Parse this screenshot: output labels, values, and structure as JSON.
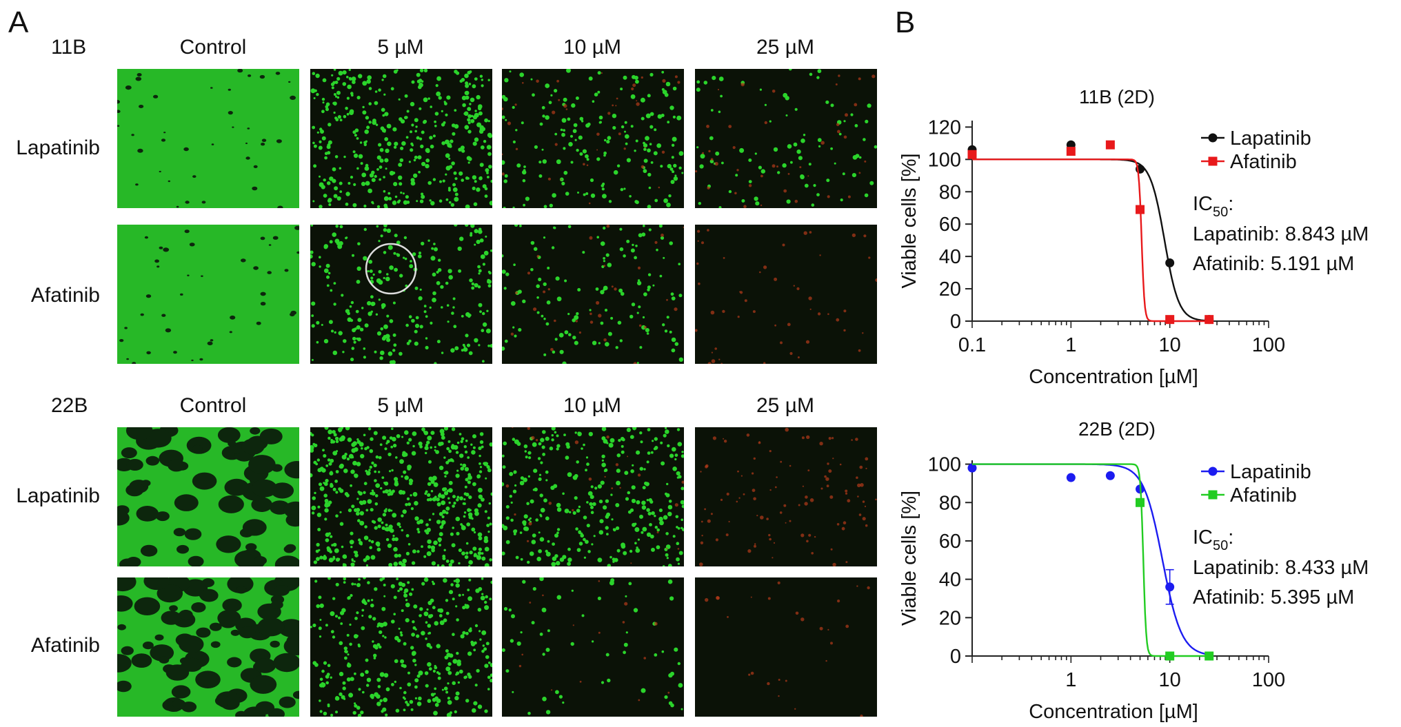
{
  "panel_a": {
    "letter": "A",
    "groups": [
      {
        "cell_line": "11B",
        "columns": [
          "Control",
          "5 µM",
          "10 µM",
          "25 µM"
        ],
        "rows": [
          {
            "label": "Lapatinib",
            "green_density": [
              1.0,
              0.55,
              0.25,
              0.12
            ],
            "red_density": [
              0.0,
              0.0,
              0.08,
              0.08
            ]
          },
          {
            "label": "Afatinib",
            "green_density": [
              1.0,
              0.35,
              0.18,
              0.0
            ],
            "red_density": [
              0.0,
              0.0,
              0.06,
              0.1
            ]
          }
        ]
      },
      {
        "cell_line": "22B",
        "columns": [
          "Control",
          "5 µM",
          "10 µM",
          "25 µM"
        ],
        "rows": [
          {
            "label": "Lapatinib",
            "green_density": [
              0.9,
              0.75,
              0.45,
              0.0
            ],
            "red_density": [
              0.0,
              0.0,
              0.05,
              0.2
            ]
          },
          {
            "label": "Afatinib",
            "green_density": [
              0.85,
              0.5,
              0.08,
              0.0
            ],
            "red_density": [
              0.0,
              0.0,
              0.03,
              0.05
            ]
          }
        ]
      }
    ],
    "colors": {
      "live": "#2bd42b",
      "dead": "#b33a1a",
      "background": "#0b1207",
      "circle": "#dddddd"
    }
  },
  "panel_b": {
    "letter": "B"
  },
  "chart_data": [
    {
      "type": "scatter",
      "title": "11B (2D)",
      "xlabel": "Concentration [µM]",
      "ylabel": "Viable cells [%]",
      "xscale": "log",
      "xlim": [
        0.1,
        100
      ],
      "ylim": [
        0,
        130
      ],
      "x_ticks": [
        "0.1",
        "1",
        "10",
        "100"
      ],
      "y_ticks": [
        "0",
        "20",
        "40",
        "60",
        "80",
        "100",
        "120"
      ],
      "legend_position": "top-right",
      "series": [
        {
          "name": "Lapatinib",
          "color": "#111111",
          "marker": "circle",
          "x": [
            0.1,
            1,
            5,
            10,
            25
          ],
          "y": [
            106,
            109,
            94,
            36,
            1
          ],
          "fit": {
            "ic50": 8.843,
            "hill": 6,
            "top": 100,
            "bottom": 0
          }
        },
        {
          "name": "Afatinib",
          "color": "#e8191b",
          "marker": "square",
          "x": [
            0.1,
            1,
            2.5,
            5,
            10,
            25
          ],
          "y": [
            103,
            105,
            109,
            69,
            1,
            1
          ],
          "fit": {
            "ic50": 5.191,
            "hill": 30,
            "top": 100,
            "bottom": 0
          }
        }
      ],
      "annotation": {
        "ic_label": "IC",
        "ic_sub": "50",
        "ic_suffix": ":",
        "lines": [
          "Lapatinib: 8.843 µM",
          "Afatinib: 5.191 µM"
        ]
      }
    },
    {
      "type": "scatter",
      "title": "22B (2D)",
      "xlabel": "Concentration [µM]",
      "ylabel": "Viable cells [%]",
      "xscale": "log",
      "xlim": [
        0.1,
        100
      ],
      "ylim": [
        0,
        100
      ],
      "x_ticks": [
        "1",
        "10",
        "100"
      ],
      "y_ticks": [
        "0",
        "20",
        "40",
        "60",
        "80",
        "100"
      ],
      "legend_position": "top-right",
      "series": [
        {
          "name": "Lapatinib",
          "color": "#1c1cf0",
          "marker": "circle",
          "x": [
            0.1,
            1,
            2.5,
            5,
            10,
            25
          ],
          "y": [
            98,
            93,
            94,
            87,
            36,
            0
          ],
          "error": [
            0,
            0,
            0,
            0,
            9,
            0
          ],
          "fit": {
            "ic50": 8.433,
            "hill": 4.5,
            "top": 100,
            "bottom": 0
          }
        },
        {
          "name": "Afatinib",
          "color": "#22cc22",
          "marker": "square",
          "x": [
            5,
            10,
            25
          ],
          "y": [
            80,
            0,
            0
          ],
          "fit": {
            "ic50": 5.395,
            "hill": 30,
            "top": 100,
            "bottom": 0
          }
        }
      ],
      "annotation": {
        "ic_label": "IC",
        "ic_sub": "50",
        "ic_suffix": ":",
        "lines": [
          "Lapatinib: 8.433 µM",
          "Afatinib: 5.395 µM"
        ]
      }
    }
  ]
}
